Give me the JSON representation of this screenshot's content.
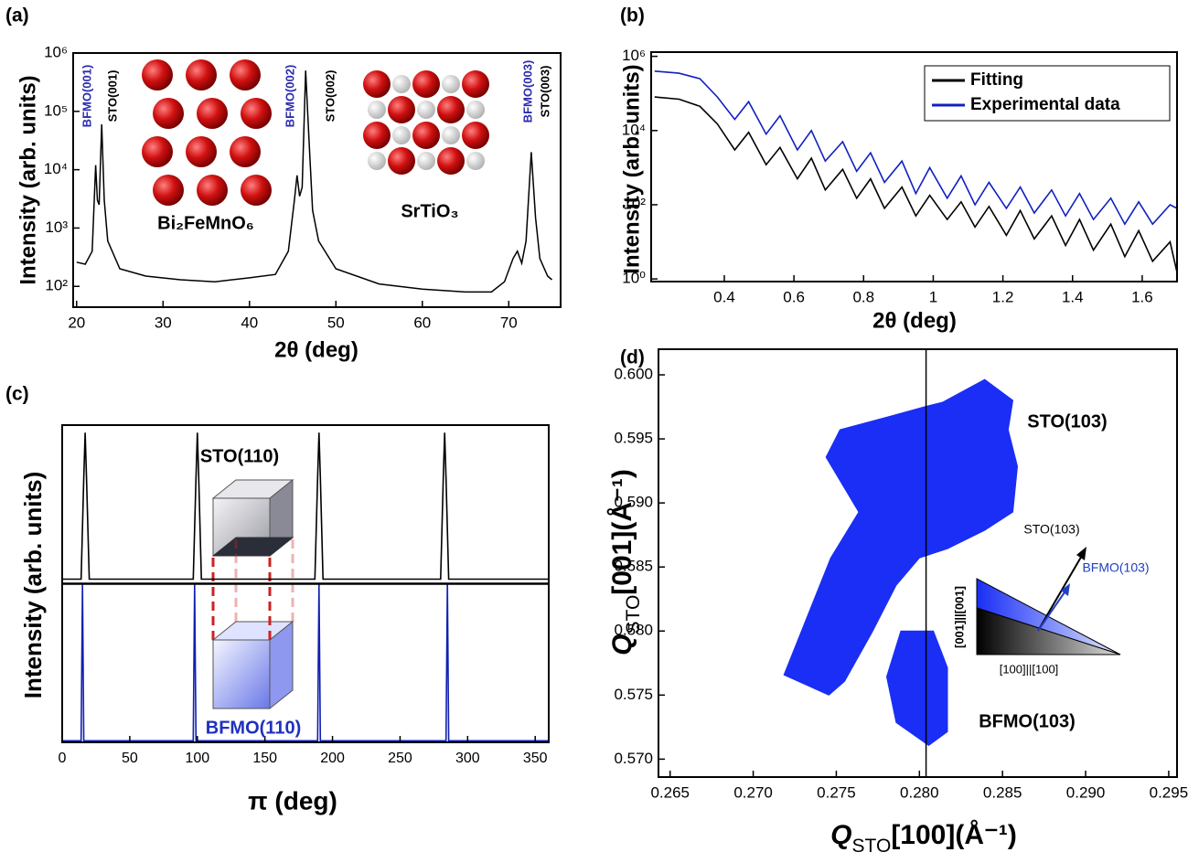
{
  "chart_data": [
    {
      "type": "line",
      "panel_label": "(a)",
      "x_label": "2θ (deg)",
      "y_label": "Intensity (arb. units)",
      "log_y": true,
      "color": "#000000",
      "xlim": [
        19.6,
        76
      ],
      "xticks": [
        20,
        30,
        40,
        50,
        60,
        70
      ],
      "ylim": [
        44,
        1000000
      ],
      "yticks": [
        {
          "value": 100,
          "label": "10²"
        },
        {
          "value": 1000,
          "label": "10³"
        },
        {
          "value": 10000,
          "label": "10⁴"
        },
        {
          "value": 100000,
          "label": "10⁵"
        },
        {
          "value": 1000000,
          "label": "10⁶"
        }
      ],
      "x": [
        20,
        21,
        21.8,
        22.2,
        22.4,
        22.6,
        22.9,
        23.2,
        23.6,
        25,
        28,
        32,
        36,
        40,
        43,
        44.5,
        45.2,
        45.5,
        45.8,
        46.1,
        46.5,
        46.9,
        47.3,
        48,
        50,
        55,
        60,
        65,
        68,
        69.5,
        70.5,
        71,
        71.5,
        72,
        72.6,
        73.1,
        73.6,
        74.5,
        75
      ],
      "values": [
        260,
        240,
        400,
        12000,
        3000,
        2500,
        60000,
        3000,
        600,
        200,
        150,
        130,
        120,
        140,
        160,
        400,
        3000,
        8000,
        3500,
        5000,
        500000,
        30000,
        2000,
        600,
        200,
        110,
        90,
        80,
        80,
        120,
        300,
        400,
        250,
        600,
        20000,
        1500,
        300,
        150,
        130
      ],
      "annotations": [
        {
          "text": "BFMO(001)",
          "color": "#2b2bb0"
        },
        {
          "text": "STO(001)",
          "color": "#000000"
        },
        {
          "text": "BFMO(002)",
          "color": "#2b2bb0"
        },
        {
          "text": "STO(002)",
          "color": "#000000"
        },
        {
          "text": "BFMO(003)",
          "color": "#2b2bb0"
        },
        {
          "text": "STO(003)",
          "color": "#000000"
        },
        {
          "text": "Bi₂FeMnO₆",
          "color": "#000000"
        },
        {
          "text": "SrTiO₃",
          "color": "#000000"
        }
      ]
    },
    {
      "type": "line",
      "panel_label": "(b)",
      "x_label": "2θ (deg)",
      "y_label": "Intensity (arb. units)",
      "log_y": true,
      "legend": "upper right",
      "xlim": [
        0.19,
        1.7
      ],
      "xticks": [
        0.4,
        0.6,
        0.8,
        1.0,
        1.2,
        1.4,
        1.6
      ],
      "ylim": [
        0.85,
        1300000
      ],
      "yticks": [
        {
          "value": 1,
          "label": "10⁰"
        },
        {
          "value": 100,
          "label": "10²"
        },
        {
          "value": 10000,
          "label": "10⁴"
        },
        {
          "value": 1000000,
          "label": "10⁶"
        }
      ],
      "x": [
        0.2,
        0.27,
        0.33,
        0.38,
        0.43,
        0.47,
        0.52,
        0.56,
        0.61,
        0.65,
        0.69,
        0.74,
        0.78,
        0.82,
        0.86,
        0.91,
        0.95,
        0.99,
        1.04,
        1.08,
        1.12,
        1.16,
        1.21,
        1.25,
        1.29,
        1.34,
        1.38,
        1.42,
        1.46,
        1.51,
        1.55,
        1.59,
        1.63,
        1.68,
        1.7
      ],
      "series": [
        {
          "name": "Fitting",
          "color": "#000000",
          "values": [
            80000,
            70000,
            45000,
            15000,
            3000,
            9000,
            1200,
            3500,
            500,
            1800,
            250,
            900,
            150,
            500,
            80,
            300,
            50,
            180,
            40,
            120,
            25,
            90,
            15,
            70,
            12,
            50,
            8,
            40,
            6,
            30,
            4,
            20,
            3,
            10,
            1.5
          ]
        },
        {
          "name": "Experimental data",
          "color": "#1020c0",
          "values": [
            400000,
            350000,
            250000,
            80000,
            20000,
            60000,
            8000,
            25000,
            3000,
            10000,
            1500,
            5000,
            800,
            2500,
            400,
            1500,
            200,
            1000,
            150,
            600,
            100,
            400,
            80,
            300,
            60,
            250,
            50,
            200,
            40,
            150,
            30,
            120,
            30,
            100,
            80
          ]
        }
      ]
    },
    {
      "type": "line",
      "panel_label": "(c)",
      "x_label": "π (deg)",
      "y_label": "Intensity (arb. units)",
      "subplots": true,
      "xlim": [
        0,
        360
      ],
      "xticks": [
        0,
        50,
        100,
        150,
        200,
        250,
        300,
        350
      ],
      "ylim": [
        0,
        1.05
      ],
      "series": [
        {
          "color": "#000000",
          "x": [
            0,
            14,
            16,
            17,
            18,
            20,
            97,
            99,
            100,
            101,
            103,
            187,
            189,
            190,
            191,
            193,
            280,
            282,
            283,
            284,
            286,
            360
          ],
          "values": [
            0.03,
            0.03,
            0.7,
            1.0,
            0.7,
            0.03,
            0.03,
            0.7,
            1.0,
            0.7,
            0.03,
            0.03,
            0.7,
            1.0,
            0.7,
            0.03,
            0.03,
            0.7,
            1.0,
            0.7,
            0.03,
            0.03
          ]
        },
        {
          "color": "#1020b0",
          "x": [
            0,
            14,
            15,
            16,
            97,
            98,
            99,
            189,
            190,
            191,
            284,
            285,
            286,
            360
          ],
          "values": [
            0.01,
            0.01,
            1.05,
            0.01,
            0.01,
            1.05,
            0.01,
            0.01,
            1.05,
            0.01,
            0.01,
            1.05,
            0.01,
            0.01
          ]
        }
      ],
      "annotations": [
        {
          "text": "STO(110)",
          "color": "#000000"
        },
        {
          "text": "BFMO(110)",
          "color": "#2030c0"
        }
      ]
    },
    {
      "type": "contour",
      "panel_label": "(d)",
      "x_label": [
        "Q",
        "STO",
        "[100](Å⁻¹)"
      ],
      "y_label": [
        "Q",
        "STO",
        "[001](Å⁻¹)"
      ],
      "xlim": [
        0.2643,
        0.2955
      ],
      "xticks": [
        0.265,
        {
          "value": 0.27,
          "label": "0.270"
        },
        0.275,
        {
          "value": 0.28,
          "label": "0.280"
        },
        0.285,
        {
          "value": 0.29,
          "label": "0.290"
        },
        0.295
      ],
      "ylim": [
        0.5686,
        0.602
      ],
      "yticks": [
        {
          "value": 0.57,
          "label": "0.570"
        },
        0.575,
        {
          "value": 0.58,
          "label": "0.580"
        },
        0.585,
        {
          "value": 0.59,
          "label": "0.590"
        },
        0.595,
        {
          "value": 0.6,
          "label": "0.600"
        }
      ],
      "vline": 0.2804,
      "series": [
        {
          "color": "#1a2ef5",
          "x": [
            0.27455,
            0.27185,
            0.27466,
            0.27635,
            0.27438,
            0.27522,
            0.27831,
            0.28028,
            0.2814,
            0.28393,
            0.28562,
            0.28534,
            0.2859,
            0.28562,
            0.28393,
            0.28169,
            0.28,
            0.2786,
            0.27719,
            0.2755
          ],
          "values": [
            0.575,
            0.57657,
            0.58571,
            0.58929,
            0.59357,
            0.59571,
            0.59679,
            0.5975,
            0.59786,
            0.59964,
            0.598,
            0.59571,
            0.59286,
            0.58929,
            0.58786,
            0.58643,
            0.58571,
            0.58357,
            0.58,
            0.57607
          ]
        },
        {
          "color": "#1a2ef5",
          "x": [
            0.27888,
            0.28084,
            0.28169,
            0.28169,
            0.28056,
            0.2786,
            0.27803
          ],
          "values": [
            0.58,
            0.58,
            0.57714,
            0.57214,
            0.57107,
            0.57286,
            0.57643
          ]
        }
      ],
      "annotations": [
        {
          "text": "STO(103)",
          "color": "#000000"
        },
        {
          "text": "BFMO(103)",
          "color": "#000000"
        },
        {
          "text": "STO(103)",
          "color": "#000000"
        },
        {
          "text": "BFMO(103)",
          "color": "#2040c0"
        },
        {
          "text": "[100]||[100]",
          "color": "#000000"
        },
        {
          "text": "[001]||[001]",
          "color": "#000000"
        }
      ]
    }
  ]
}
